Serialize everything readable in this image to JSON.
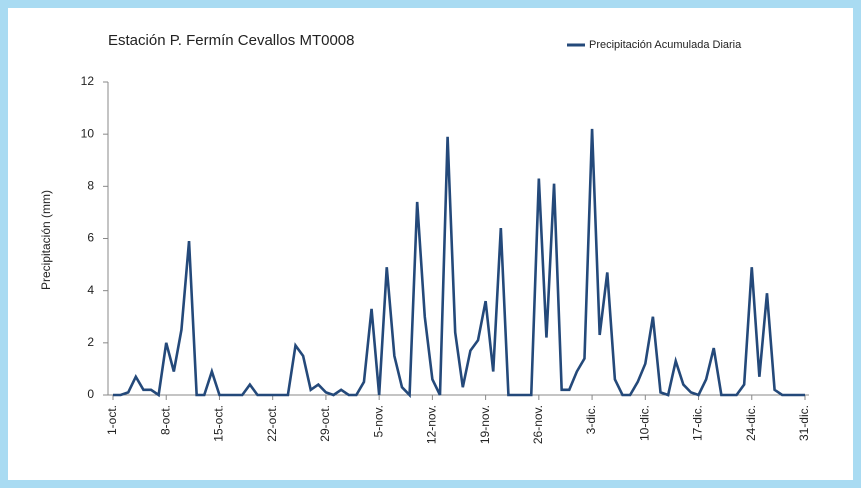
{
  "chart_data": {
    "type": "line",
    "title": "Estación  P. Fermín Cevallos MT0008",
    "y_label": "Precipitación (mm)",
    "legend": "top-right",
    "grid": false,
    "categories": [
      "1-oct.",
      null,
      null,
      null,
      null,
      null,
      null,
      "8-oct.",
      null,
      null,
      null,
      null,
      null,
      null,
      "15-oct.",
      null,
      null,
      null,
      null,
      null,
      null,
      "22-oct.",
      null,
      null,
      null,
      null,
      null,
      null,
      "29-oct.",
      null,
      null,
      null,
      null,
      null,
      null,
      "5-nov.",
      null,
      null,
      null,
      null,
      null,
      null,
      "12-nov.",
      null,
      null,
      null,
      null,
      null,
      null,
      "19-nov.",
      null,
      null,
      null,
      null,
      null,
      null,
      "26-nov.",
      null,
      null,
      null,
      null,
      null,
      null,
      "3-dic.",
      null,
      null,
      null,
      null,
      null,
      null,
      "10-dic.",
      null,
      null,
      null,
      null,
      null,
      null,
      "17-dic.",
      null,
      null,
      null,
      null,
      null,
      null,
      "24-dic.",
      null,
      null,
      null,
      null,
      null,
      null,
      "31-dic."
    ],
    "series": [
      {
        "name": "Precipitación Acumulada Diaria",
        "color": "#24497a",
        "values": [
          0,
          0,
          0.1,
          0.7,
          0.2,
          0.2,
          0,
          2.0,
          0.9,
          2.5,
          5.9,
          0,
          0,
          0.9,
          0,
          0,
          0,
          0,
          0.4,
          0,
          0,
          0,
          0,
          0,
          1.9,
          1.5,
          0.2,
          0.4,
          0.1,
          0,
          0.2,
          0,
          0,
          0.5,
          3.3,
          0,
          4.9,
          1.5,
          0.3,
          0,
          7.4,
          3.0,
          0.6,
          0,
          9.9,
          2.4,
          0.3,
          1.7,
          2.1,
          3.6,
          0.9,
          6.4,
          0,
          0,
          0,
          0,
          8.3,
          2.2,
          8.1,
          0.2,
          0.2,
          0.9,
          1.4,
          10.2,
          2.3,
          4.7,
          0.6,
          0,
          0,
          0.5,
          1.2,
          3.0,
          0.1,
          0,
          1.3,
          0.4,
          0.1,
          0,
          0.6,
          1.8,
          0,
          0,
          0,
          0.4,
          4.9,
          0.7,
          3.9,
          0.2,
          0,
          0,
          0,
          0
        ]
      }
    ],
    "ylim": [
      0,
      12
    ],
    "yticks": [
      0,
      2,
      4,
      6,
      8,
      10,
      12
    ]
  }
}
